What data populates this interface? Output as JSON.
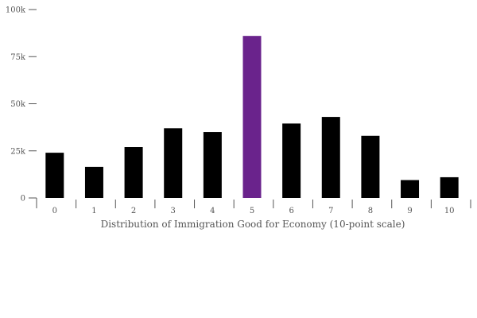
{
  "chart_data": {
    "type": "bar",
    "title": "",
    "xlabel": "Distribution of Immigration Good for Economy (10-point scale)",
    "ylabel": "",
    "categories": [
      "0",
      "1",
      "2",
      "3",
      "4",
      "5",
      "6",
      "7",
      "8",
      "9",
      "10"
    ],
    "values": [
      24000,
      16500,
      27000,
      37000,
      35000,
      86000,
      39500,
      43000,
      33000,
      9500,
      11000
    ],
    "highlight_index": 5,
    "ylim": [
      0,
      100000
    ],
    "yticks": [
      0,
      25000,
      50000,
      75000,
      100000
    ],
    "ytick_labels": [
      "0",
      "25k",
      "50k",
      "75k",
      "100k"
    ],
    "grid": false,
    "legend": "none",
    "colors": {
      "bar": "#000000",
      "highlight": "#6a238c",
      "axis": "#555555"
    }
  }
}
